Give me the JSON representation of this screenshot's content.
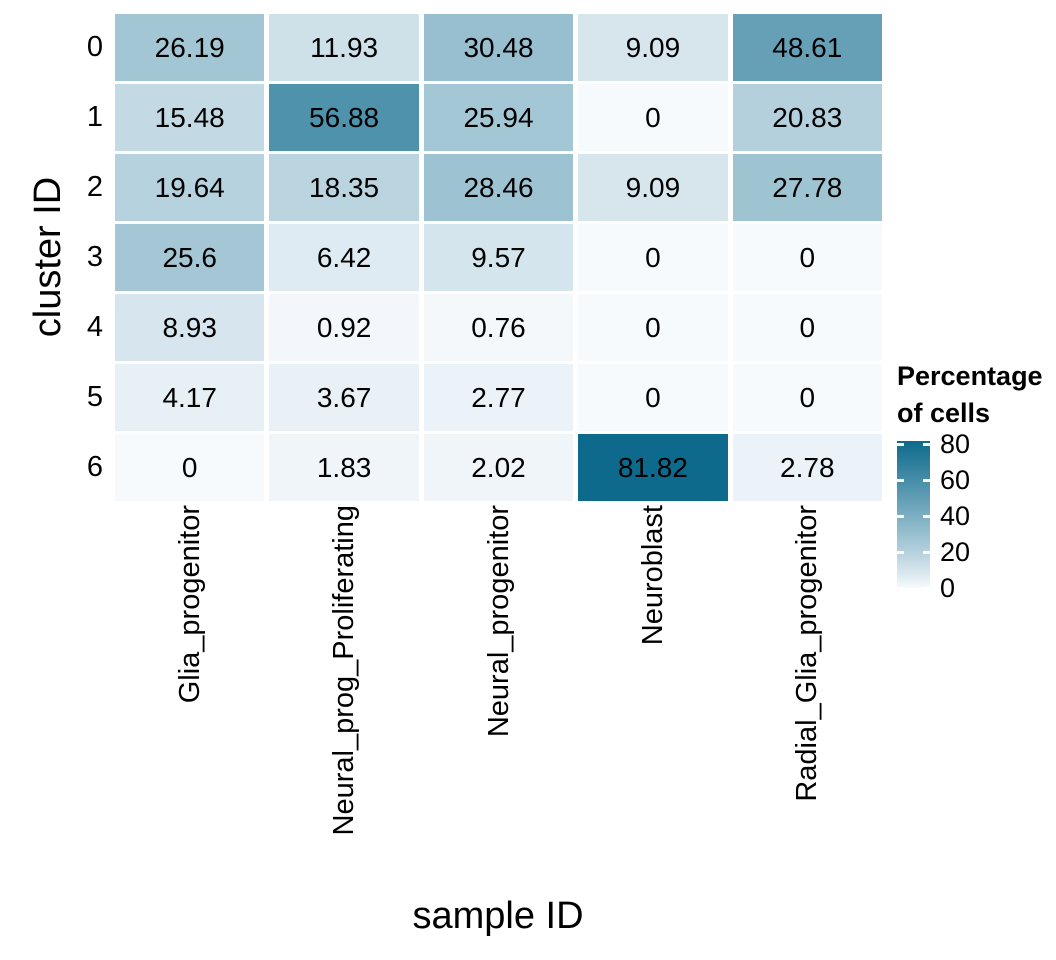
{
  "chart_data": {
    "type": "heatmap",
    "title": "",
    "xlabel": "sample ID",
    "ylabel": "cluster ID",
    "x_categories": [
      "Glia_progenitor",
      "Neural_prog_Proliferating",
      "Neural_progenitor",
      "Neuroblast",
      "Radial_Glia_progenitor"
    ],
    "y_categories": [
      "0",
      "1",
      "2",
      "3",
      "4",
      "5",
      "6"
    ],
    "values": [
      [
        26.19,
        11.93,
        30.48,
        9.09,
        48.61
      ],
      [
        15.48,
        56.88,
        25.94,
        0,
        20.83
      ],
      [
        19.64,
        18.35,
        28.46,
        9.09,
        27.78
      ],
      [
        25.6,
        6.42,
        9.57,
        0,
        0
      ],
      [
        8.93,
        0.92,
        0.76,
        0,
        0
      ],
      [
        4.17,
        3.67,
        2.77,
        0,
        0
      ],
      [
        0,
        1.83,
        2.02,
        81.82,
        2.78
      ]
    ],
    "color_scale": {
      "low": "#f7fafd",
      "high": "#0d6a8c",
      "gamma": 0.9,
      "domain": [
        0,
        81.82
      ]
    },
    "legend": {
      "title_lines": [
        "Percentage",
        "of cells"
      ],
      "ticks": [
        80,
        60,
        40,
        20,
        0
      ]
    },
    "text_color": "#000000",
    "background": "#ffffff",
    "grid_on": false,
    "legend_position": "right"
  }
}
